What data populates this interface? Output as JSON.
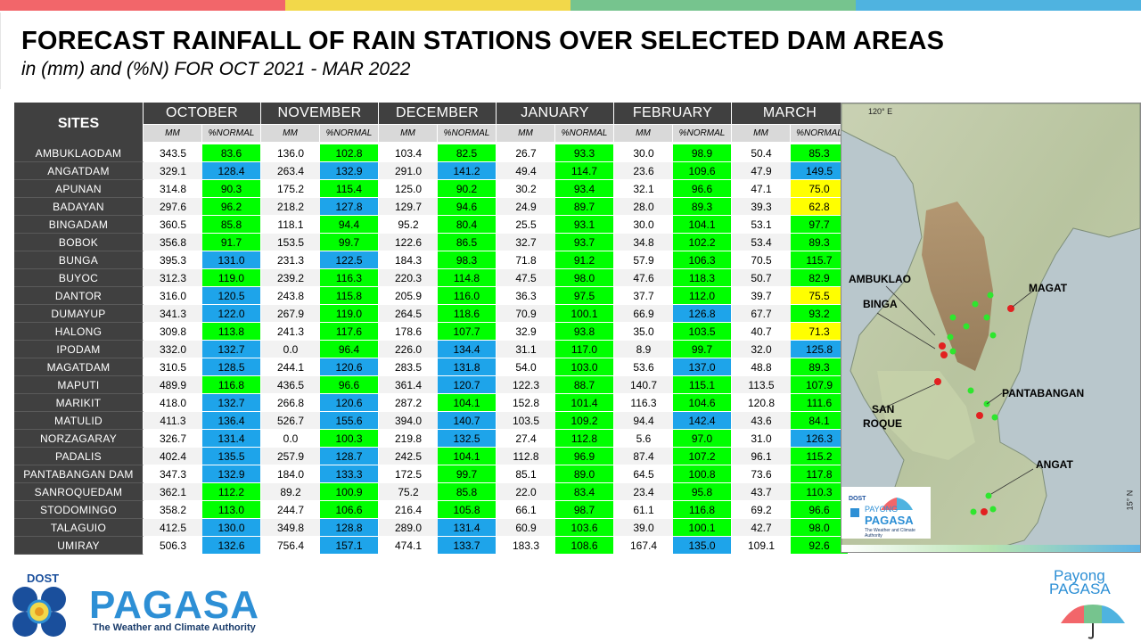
{
  "header": {
    "title": "FORECAST RAINFALL OF RAIN STATIONS OVER SELECTED DAM AREAS",
    "subtitle": "in (mm) and (%N) FOR OCT 2021 - MAR 2022",
    "colors": [
      "#f2666a",
      "#f2d84a",
      "#76c48e",
      "#4fb3e0"
    ]
  },
  "table": {
    "sites_header": "SITES",
    "months": [
      "OCTOBER",
      "NOVEMBER",
      "DECEMBER",
      "JANUARY",
      "FEBRUARY",
      "MARCH"
    ],
    "sub_mm": "MM",
    "sub_pct": "%NORMAL",
    "rows": [
      {
        "site": "AMBUKLAODAM",
        "v": [
          [
            "343.5",
            "83.6",
            "g"
          ],
          [
            "136.0",
            "102.8",
            "g"
          ],
          [
            "103.4",
            "82.5",
            "g"
          ],
          [
            "26.7",
            "93.3",
            "g"
          ],
          [
            "30.0",
            "98.9",
            "g"
          ],
          [
            "50.4",
            "85.3",
            "g"
          ]
        ]
      },
      {
        "site": "ANGATDAM",
        "v": [
          [
            "329.1",
            "128.4",
            "b"
          ],
          [
            "263.4",
            "132.9",
            "b"
          ],
          [
            "291.0",
            "141.2",
            "b"
          ],
          [
            "49.4",
            "114.7",
            "g"
          ],
          [
            "23.6",
            "109.6",
            "g"
          ],
          [
            "47.9",
            "149.5",
            "b"
          ]
        ]
      },
      {
        "site": "APUNAN",
        "v": [
          [
            "314.8",
            "90.3",
            "g"
          ],
          [
            "175.2",
            "115.4",
            "g"
          ],
          [
            "125.0",
            "90.2",
            "g"
          ],
          [
            "30.2",
            "93.4",
            "g"
          ],
          [
            "32.1",
            "96.6",
            "g"
          ],
          [
            "47.1",
            "75.0",
            "y"
          ]
        ]
      },
      {
        "site": "BADAYAN",
        "v": [
          [
            "297.6",
            "96.2",
            "g"
          ],
          [
            "218.2",
            "127.8",
            "b"
          ],
          [
            "129.7",
            "94.6",
            "g"
          ],
          [
            "24.9",
            "89.7",
            "g"
          ],
          [
            "28.0",
            "89.3",
            "g"
          ],
          [
            "39.3",
            "62.8",
            "y"
          ]
        ]
      },
      {
        "site": "BINGADAM",
        "v": [
          [
            "360.5",
            "85.8",
            "g"
          ],
          [
            "118.1",
            "94.4",
            "g"
          ],
          [
            "95.2",
            "80.4",
            "g"
          ],
          [
            "25.5",
            "93.1",
            "g"
          ],
          [
            "30.0",
            "104.1",
            "g"
          ],
          [
            "53.1",
            "97.7",
            "g"
          ]
        ]
      },
      {
        "site": "BOBOK",
        "v": [
          [
            "356.8",
            "91.7",
            "g"
          ],
          [
            "153.5",
            "99.7",
            "g"
          ],
          [
            "122.6",
            "86.5",
            "g"
          ],
          [
            "32.7",
            "93.7",
            "g"
          ],
          [
            "34.8",
            "102.2",
            "g"
          ],
          [
            "53.4",
            "89.3",
            "g"
          ]
        ]
      },
      {
        "site": "BUNGA",
        "v": [
          [
            "395.3",
            "131.0",
            "b"
          ],
          [
            "231.3",
            "122.5",
            "b"
          ],
          [
            "184.3",
            "98.3",
            "g"
          ],
          [
            "71.8",
            "91.2",
            "g"
          ],
          [
            "57.9",
            "106.3",
            "g"
          ],
          [
            "70.5",
            "115.7",
            "g"
          ]
        ]
      },
      {
        "site": "BUYOC",
        "v": [
          [
            "312.3",
            "119.0",
            "g"
          ],
          [
            "239.2",
            "116.3",
            "g"
          ],
          [
            "220.3",
            "114.8",
            "g"
          ],
          [
            "47.5",
            "98.0",
            "g"
          ],
          [
            "47.6",
            "118.3",
            "g"
          ],
          [
            "50.7",
            "82.9",
            "g"
          ]
        ]
      },
      {
        "site": "DANTOR",
        "v": [
          [
            "316.0",
            "120.5",
            "b"
          ],
          [
            "243.8",
            "115.8",
            "g"
          ],
          [
            "205.9",
            "116.0",
            "g"
          ],
          [
            "36.3",
            "97.5",
            "g"
          ],
          [
            "37.7",
            "112.0",
            "g"
          ],
          [
            "39.7",
            "75.5",
            "y"
          ]
        ]
      },
      {
        "site": "DUMAYUP",
        "v": [
          [
            "341.3",
            "122.0",
            "b"
          ],
          [
            "267.9",
            "119.0",
            "g"
          ],
          [
            "264.5",
            "118.6",
            "g"
          ],
          [
            "70.9",
            "100.1",
            "g"
          ],
          [
            "66.9",
            "126.8",
            "b"
          ],
          [
            "67.7",
            "93.2",
            "g"
          ]
        ]
      },
      {
        "site": "HALONG",
        "v": [
          [
            "309.8",
            "113.8",
            "g"
          ],
          [
            "241.3",
            "117.6",
            "g"
          ],
          [
            "178.6",
            "107.7",
            "g"
          ],
          [
            "32.9",
            "93.8",
            "g"
          ],
          [
            "35.0",
            "103.5",
            "g"
          ],
          [
            "40.7",
            "71.3",
            "y"
          ]
        ]
      },
      {
        "site": "IPODAM",
        "v": [
          [
            "332.0",
            "132.7",
            "b"
          ],
          [
            "0.0",
            "96.4",
            "g"
          ],
          [
            "226.0",
            "134.4",
            "b"
          ],
          [
            "31.1",
            "117.0",
            "g"
          ],
          [
            "8.9",
            "99.7",
            "g"
          ],
          [
            "32.0",
            "125.8",
            "b"
          ]
        ]
      },
      {
        "site": "MAGATDAM",
        "v": [
          [
            "310.5",
            "128.5",
            "b"
          ],
          [
            "244.1",
            "120.6",
            "b"
          ],
          [
            "283.5",
            "131.8",
            "b"
          ],
          [
            "54.0",
            "103.0",
            "g"
          ],
          [
            "53.6",
            "137.0",
            "b"
          ],
          [
            "48.8",
            "89.3",
            "g"
          ]
        ]
      },
      {
        "site": "MAPUTI",
        "v": [
          [
            "489.9",
            "116.8",
            "g"
          ],
          [
            "436.5",
            "96.6",
            "g"
          ],
          [
            "361.4",
            "120.7",
            "b"
          ],
          [
            "122.3",
            "88.7",
            "g"
          ],
          [
            "140.7",
            "115.1",
            "g"
          ],
          [
            "113.5",
            "107.9",
            "g"
          ]
        ]
      },
      {
        "site": "MARIKIT",
        "v": [
          [
            "418.0",
            "132.7",
            "b"
          ],
          [
            "266.8",
            "120.6",
            "b"
          ],
          [
            "287.2",
            "104.1",
            "g"
          ],
          [
            "152.8",
            "101.4",
            "g"
          ],
          [
            "116.3",
            "104.6",
            "g"
          ],
          [
            "120.8",
            "111.6",
            "g"
          ]
        ]
      },
      {
        "site": "MATULID",
        "v": [
          [
            "411.3",
            "136.4",
            "b"
          ],
          [
            "526.7",
            "155.6",
            "b"
          ],
          [
            "394.0",
            "140.7",
            "b"
          ],
          [
            "103.5",
            "109.2",
            "g"
          ],
          [
            "94.4",
            "142.4",
            "b"
          ],
          [
            "43.6",
            "84.1",
            "g"
          ]
        ]
      },
      {
        "site": "NORZAGARAY",
        "v": [
          [
            "326.7",
            "131.4",
            "b"
          ],
          [
            "0.0",
            "100.3",
            "g"
          ],
          [
            "219.8",
            "132.5",
            "b"
          ],
          [
            "27.4",
            "112.8",
            "g"
          ],
          [
            "5.6",
            "97.0",
            "g"
          ],
          [
            "31.0",
            "126.3",
            "b"
          ]
        ]
      },
      {
        "site": "PADALIS",
        "v": [
          [
            "402.4",
            "135.5",
            "b"
          ],
          [
            "257.9",
            "128.7",
            "b"
          ],
          [
            "242.5",
            "104.1",
            "g"
          ],
          [
            "112.8",
            "96.9",
            "g"
          ],
          [
            "87.4",
            "107.2",
            "g"
          ],
          [
            "96.1",
            "115.2",
            "g"
          ]
        ]
      },
      {
        "site": "PANTABANGAN DAM",
        "v": [
          [
            "347.3",
            "132.9",
            "b"
          ],
          [
            "184.0",
            "133.3",
            "b"
          ],
          [
            "172.5",
            "99.7",
            "g"
          ],
          [
            "85.1",
            "89.0",
            "g"
          ],
          [
            "64.5",
            "100.8",
            "g"
          ],
          [
            "73.6",
            "117.8",
            "g"
          ]
        ]
      },
      {
        "site": "SANROQUEDAM",
        "v": [
          [
            "362.1",
            "112.2",
            "g"
          ],
          [
            "89.2",
            "100.9",
            "g"
          ],
          [
            "75.2",
            "85.8",
            "g"
          ],
          [
            "22.0",
            "83.4",
            "g"
          ],
          [
            "23.4",
            "95.8",
            "g"
          ],
          [
            "43.7",
            "110.3",
            "g"
          ]
        ]
      },
      {
        "site": "STODOMINGO",
        "v": [
          [
            "358.2",
            "113.0",
            "g"
          ],
          [
            "244.7",
            "106.6",
            "g"
          ],
          [
            "216.4",
            "105.8",
            "g"
          ],
          [
            "66.1",
            "98.7",
            "g"
          ],
          [
            "61.1",
            "116.8",
            "g"
          ],
          [
            "69.2",
            "96.6",
            "g"
          ]
        ]
      },
      {
        "site": "TALAGUIO",
        "v": [
          [
            "412.5",
            "130.0",
            "b"
          ],
          [
            "349.8",
            "128.8",
            "b"
          ],
          [
            "289.0",
            "131.4",
            "b"
          ],
          [
            "60.9",
            "103.6",
            "g"
          ],
          [
            "39.0",
            "100.1",
            "g"
          ],
          [
            "42.7",
            "98.0",
            "g"
          ]
        ]
      },
      {
        "site": "UMIRAY",
        "v": [
          [
            "506.3",
            "132.6",
            "b"
          ],
          [
            "756.4",
            "157.1",
            "b"
          ],
          [
            "474.1",
            "133.7",
            "b"
          ],
          [
            "183.3",
            "108.6",
            "g"
          ],
          [
            "167.4",
            "135.0",
            "b"
          ],
          [
            "109.1",
            "92.6",
            "g"
          ]
        ]
      }
    ]
  },
  "map": {
    "lon_label": "120° E",
    "lat_label": "15° N",
    "labels": {
      "ambuklao": "AMBUKLAO",
      "binga": "BINGA",
      "magat": "MAGAT",
      "pantabangan": "PANTABANGAN",
      "sanroque1": "SAN",
      "sanroque2": "ROQUE",
      "angat": "ANGAT"
    },
    "inset_logo_line1": "DOST",
    "inset_logo_line2": "PAYONG",
    "inset_logo_line3": "PAGASA",
    "inset_logo_line4": "The Weather and Climate Authority"
  },
  "footer": {
    "dost": "DOST",
    "pagasa": "PAGASA",
    "tagline": "The Weather and Climate Authority",
    "payong_line1": "Payong",
    "payong_line2": "PAGASA"
  }
}
